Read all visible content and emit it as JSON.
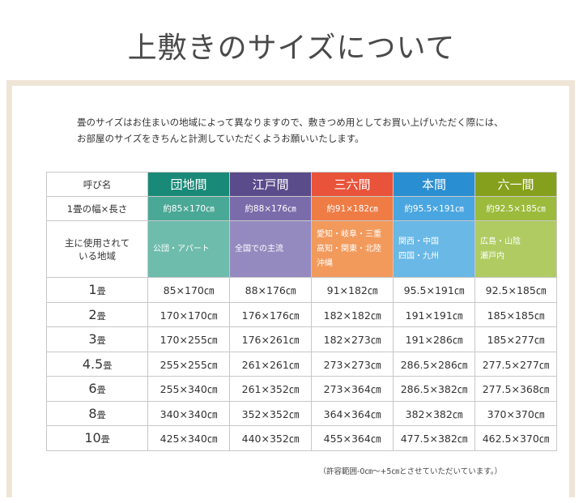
{
  "title": "上敷きのサイズについて",
  "intro": [
    "畳のサイズはお住まいの地域によって異なりますので、敷きつめ用としてお買い上げいただく際には、",
    "お部屋のサイズをきちんと計測していただくようお願いいたします。"
  ],
  "table": {
    "header": [
      "呼び名",
      "団地間",
      "江戸間",
      "三六間",
      "本間",
      "六一間"
    ],
    "width_row": [
      "1畳の幅×長さ",
      "約85×170㎝",
      "約88×176㎝",
      "約91×182㎝",
      "約95.5×191㎝",
      "約92.5×185㎝"
    ],
    "region_row": {
      "label": [
        "主に使用されて",
        "いる地域"
      ],
      "cells": [
        [
          "公団・アパート"
        ],
        [
          "全国での主流"
        ],
        [
          "愛知・岐阜・三重",
          "高知・関東・北陸",
          "沖縄"
        ],
        [
          "関西・中国",
          "四国・九州"
        ],
        [
          "広島・山陰",
          "瀬戸内"
        ]
      ]
    },
    "rows": [
      {
        "num": "1",
        "unit": "畳",
        "cells": [
          "85×170㎝",
          "88×176㎝",
          "91×182㎝",
          "95.5×191㎝",
          "92.5×185㎝"
        ]
      },
      {
        "num": "2",
        "unit": "畳",
        "cells": [
          "170×170㎝",
          "176×176㎝",
          "182×182㎝",
          "191×191㎝",
          "185×185㎝"
        ]
      },
      {
        "num": "3",
        "unit": "畳",
        "cells": [
          "170×255㎝",
          "176×261㎝",
          "182×273㎝",
          "191×286㎝",
          "185×277㎝"
        ]
      },
      {
        "num": "4.5",
        "unit": "畳",
        "cells": [
          "255×255㎝",
          "261×261㎝",
          "273×273㎝",
          "286.5×286㎝",
          "277.5×277㎝"
        ]
      },
      {
        "num": "6",
        "unit": "畳",
        "cells": [
          "255×340㎝",
          "261×352㎝",
          "273×364㎝",
          "286.5×382㎝",
          "277.5×368㎝"
        ]
      },
      {
        "num": "8",
        "unit": "畳",
        "cells": [
          "340×340㎝",
          "352×352㎝",
          "364×364㎝",
          "382×382㎝",
          "370×370㎝"
        ]
      },
      {
        "num": "10",
        "unit": "畳",
        "cells": [
          "425×340㎝",
          "440×352㎝",
          "455×364㎝",
          "477.5×382㎝",
          "462.5×370㎝"
        ]
      }
    ]
  },
  "note": "（許容範囲-0㎝～+5㎝とさせていただいています。）"
}
